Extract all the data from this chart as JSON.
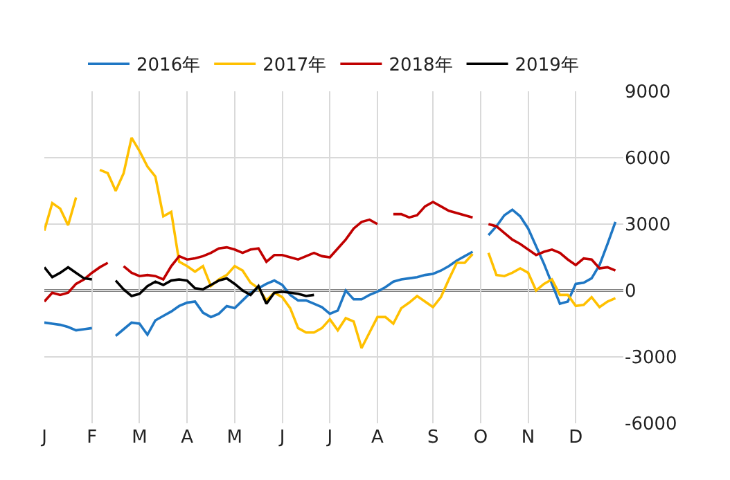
{
  "chart_data": {
    "type": "line",
    "categories": [
      "J",
      null,
      null,
      null,
      null,
      null,
      "F",
      null,
      null,
      null,
      null,
      null,
      "M",
      null,
      null,
      null,
      null,
      null,
      "A",
      null,
      null,
      null,
      null,
      null,
      "M",
      null,
      null,
      null,
      null,
      null,
      "J",
      null,
      null,
      null,
      null,
      null,
      "J",
      null,
      null,
      null,
      null,
      null,
      "A",
      null,
      null,
      null,
      null,
      null,
      null,
      "S",
      null,
      null,
      null,
      null,
      null,
      "O",
      null,
      null,
      null,
      null,
      null,
      "N",
      null,
      null,
      null,
      null,
      null,
      "D",
      null,
      null,
      null,
      null,
      null
    ],
    "ylim": [
      -6000,
      9000
    ],
    "yticks": [
      -6000,
      -3000,
      0,
      3000,
      6000,
      9000
    ],
    "grid": true,
    "legend": "top",
    "line_style": "solid",
    "ref_lines": [
      {
        "axis": "y",
        "value": 0,
        "color": "#000000"
      }
    ],
    "series": [
      {
        "name": "2016年",
        "color": "#1f77c4",
        "values": [
          -1450,
          -1500,
          -1550,
          -1650,
          -1800,
          -1750,
          -1700,
          null,
          null,
          -2050,
          -1750,
          -1450,
          -1500,
          -2000,
          -1350,
          -1150,
          -950,
          -700,
          -550,
          -500,
          -1000,
          -1200,
          -1050,
          -700,
          -800,
          -450,
          -100,
          100,
          300,
          450,
          250,
          -200,
          -450,
          -450,
          -600,
          -750,
          -1050,
          -900,
          0,
          -400,
          -400,
          -200,
          -50,
          150,
          400,
          500,
          550,
          600,
          700,
          750,
          900,
          1100,
          1350,
          1550,
          1750,
          null,
          2500,
          2900,
          3400,
          3650,
          3350,
          2800,
          2000,
          1200,
          300,
          -600,
          -500,
          300,
          350,
          550,
          1150,
          2100,
          3100
        ]
      },
      {
        "name": "2017年",
        "color": "#ffc000",
        "values": [
          2700,
          3950,
          3700,
          2950,
          4200,
          null,
          null,
          5450,
          5300,
          4500,
          5300,
          6900,
          6300,
          5600,
          5150,
          3350,
          3550,
          1300,
          1100,
          850,
          1100,
          200,
          500,
          700,
          1100,
          900,
          350,
          100,
          -450,
          -100,
          -300,
          -800,
          -1700,
          -1900,
          -1900,
          -1700,
          -1300,
          -1800,
          -1250,
          -1400,
          -2600,
          -1900,
          -1200,
          -1200,
          -1500,
          -800,
          -550,
          -250,
          -500,
          -750,
          -300,
          500,
          1250,
          1250,
          1650,
          null,
          1700,
          700,
          650,
          800,
          1000,
          800,
          0,
          300,
          500,
          -200,
          -200,
          -700,
          -650,
          -300,
          -750,
          -500,
          -350
        ]
      },
      {
        "name": "2018年",
        "color": "#c00000",
        "values": [
          -500,
          -100,
          -200,
          -100,
          300,
          500,
          800,
          1050,
          1250,
          null,
          1100,
          800,
          650,
          700,
          650,
          500,
          1100,
          1550,
          1400,
          1450,
          1550,
          1700,
          1900,
          1950,
          1850,
          1700,
          1850,
          1900,
          1300,
          1600,
          1600,
          1500,
          1400,
          1550,
          1700,
          1550,
          1500,
          1900,
          2300,
          2800,
          3100,
          3200,
          3000,
          null,
          3450,
          3450,
          3300,
          3400,
          3800,
          4000,
          3800,
          3600,
          3500,
          3400,
          3300,
          null,
          3000,
          2900,
          2600,
          2300,
          2100,
          1850,
          1600,
          1750,
          1850,
          1700,
          1400,
          1150,
          1450,
          1400,
          1000,
          1050,
          900
        ]
      },
      {
        "name": "2019年",
        "color": "#000000",
        "values": [
          1050,
          600,
          800,
          1050,
          800,
          550,
          500,
          null,
          null,
          450,
          50,
          -250,
          -150,
          200,
          400,
          250,
          450,
          500,
          450,
          100,
          50,
          250,
          450,
          550,
          300,
          0,
          -200,
          200,
          -600,
          -100,
          -50,
          -100,
          -150,
          -250,
          -200,
          null,
          null,
          null,
          null,
          null,
          null,
          null,
          null,
          null,
          null,
          null,
          null,
          null,
          null,
          null,
          null,
          null,
          null,
          null,
          null,
          null,
          null,
          null,
          null,
          null,
          null,
          null,
          null,
          null,
          null,
          null,
          null,
          null,
          null,
          null,
          null,
          null,
          null
        ]
      }
    ]
  }
}
